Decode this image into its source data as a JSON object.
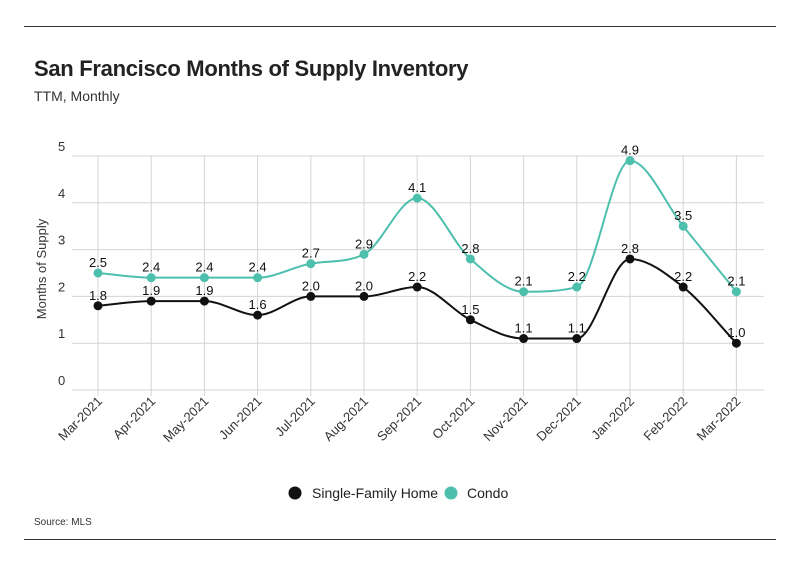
{
  "header": {
    "title": "San Francisco Months of Supply Inventory",
    "subtitle": "TTM, Monthly"
  },
  "footer": {
    "source": "Source:  MLS"
  },
  "chart_data": {
    "type": "line",
    "title": "San Francisco Months of Supply Inventory",
    "subtitle": "TTM, Monthly",
    "xlabel": "",
    "ylabel": "Months of Supply",
    "ylim": [
      0,
      5
    ],
    "yticks": [
      0,
      1,
      2,
      3,
      4,
      5
    ],
    "grid": true,
    "smooth": true,
    "legend_position": "bottom-center",
    "categories": [
      "Mar-2021",
      "Apr-2021",
      "May-2021",
      "Jun-2021",
      "Jul-2021",
      "Aug-2021",
      "Sep-2021",
      "Oct-2021",
      "Nov-2021",
      "Dec-2021",
      "Jan-2022",
      "Feb-2022",
      "Mar-2022"
    ],
    "series": [
      {
        "name": "Single-Family Home",
        "color": "#111111",
        "values": [
          1.8,
          1.9,
          1.9,
          1.6,
          2.0,
          2.0,
          2.2,
          1.5,
          1.1,
          1.1,
          2.8,
          2.2,
          1.0
        ],
        "labels": [
          "1.8",
          "1.9",
          "1.9",
          "1.6",
          "2.0",
          "2.0",
          "2.2",
          "1.5",
          "1.1",
          "1.1",
          "2.8",
          "2.2",
          "1.0"
        ]
      },
      {
        "name": "Condo",
        "color": "#4dbfad",
        "values": [
          2.5,
          2.4,
          2.4,
          2.4,
          2.7,
          2.9,
          4.1,
          2.8,
          2.1,
          2.2,
          4.9,
          3.5,
          2.1
        ],
        "labels": [
          "2.5",
          "2.4",
          "2.4",
          "2.4",
          "2.7",
          "2.9",
          "4.1",
          "2.8",
          "2.1",
          "2.2",
          "4.9",
          "3.5",
          "2.1"
        ]
      }
    ]
  }
}
